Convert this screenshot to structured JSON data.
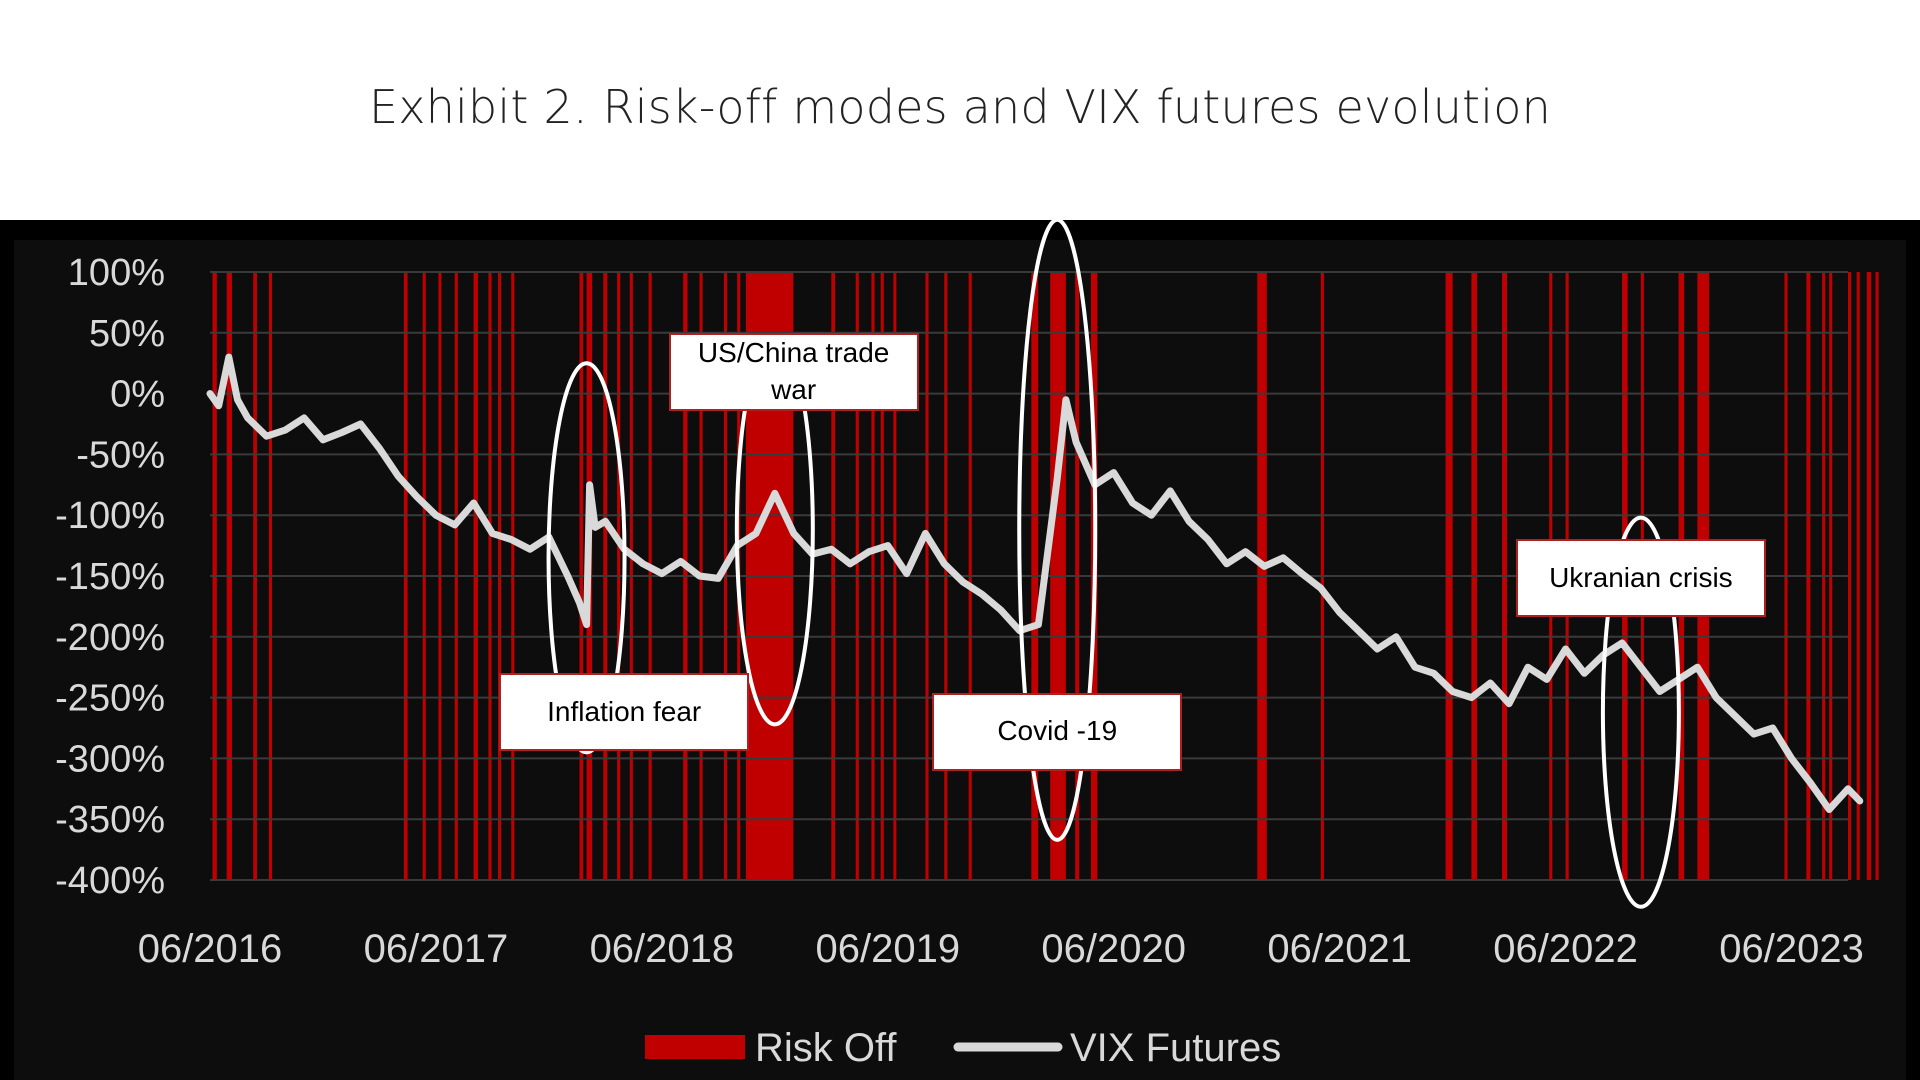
{
  "title": "Exhibit 2. Risk-off modes and VIX futures evolution",
  "colors": {
    "risk_off": "#c00000",
    "vix_line": "#d9d9d9",
    "plot_background": "#0d0d0d",
    "frame_background": "#000000",
    "grid": "#3a3a3a",
    "axis_text": "#d9d9d9",
    "ellipse": "#ffffff"
  },
  "chart_data": {
    "type": "line",
    "title": "",
    "xlabel": "",
    "ylabel": "",
    "ylim": [
      -400,
      100
    ],
    "y_unit": "%",
    "y_ticks": [
      "100%",
      "50%",
      "0%",
      "-50%",
      "-100%",
      "-150%",
      "-200%",
      "-250%",
      "-300%",
      "-350%",
      "-400%"
    ],
    "y_tick_values": [
      100,
      50,
      0,
      -50,
      -100,
      -150,
      -200,
      -250,
      -300,
      -350,
      -400
    ],
    "x_range": [
      "2016-06",
      "2023-09"
    ],
    "x_ticks": [
      "06/2016",
      "06/2017",
      "06/2018",
      "06/2019",
      "06/2020",
      "06/2021",
      "06/2022",
      "06/2023"
    ],
    "x_tick_dates": [
      "2016-06",
      "2017-06",
      "2018-06",
      "2019-06",
      "2020-06",
      "2021-06",
      "2022-06",
      "2023-06"
    ],
    "grid": true,
    "legend_position": "bottom",
    "series": [
      {
        "name": "VIX Futures",
        "points": [
          [
            "2016-06",
            0
          ],
          [
            "2016-06-15",
            -10
          ],
          [
            "2016-07",
            30
          ],
          [
            "2016-07-15",
            -5
          ],
          [
            "2016-08",
            -20
          ],
          [
            "2016-09",
            -35
          ],
          [
            "2016-10",
            -30
          ],
          [
            "2016-11",
            -20
          ],
          [
            "2016-12",
            -38
          ],
          [
            "2017-01",
            -32
          ],
          [
            "2017-02",
            -25
          ],
          [
            "2017-03",
            -45
          ],
          [
            "2017-04",
            -68
          ],
          [
            "2017-05",
            -85
          ],
          [
            "2017-06",
            -100
          ],
          [
            "2017-07",
            -108
          ],
          [
            "2017-08",
            -90
          ],
          [
            "2017-09",
            -115
          ],
          [
            "2017-10",
            -120
          ],
          [
            "2017-11",
            -128
          ],
          [
            "2017-12",
            -118
          ],
          [
            "2018-01",
            -150
          ],
          [
            "2018-01-20",
            -172
          ],
          [
            "2018-02",
            -190
          ],
          [
            "2018-02-06",
            -75
          ],
          [
            "2018-02-15",
            -110
          ],
          [
            "2018-03",
            -105
          ],
          [
            "2018-04",
            -128
          ],
          [
            "2018-05",
            -140
          ],
          [
            "2018-06",
            -148
          ],
          [
            "2018-07",
            -138
          ],
          [
            "2018-08",
            -150
          ],
          [
            "2018-09",
            -152
          ],
          [
            "2018-10",
            -125
          ],
          [
            "2018-11",
            -115
          ],
          [
            "2018-12",
            -82
          ],
          [
            "2019-01",
            -115
          ],
          [
            "2019-02",
            -132
          ],
          [
            "2019-03",
            -128
          ],
          [
            "2019-04",
            -140
          ],
          [
            "2019-05",
            -130
          ],
          [
            "2019-06",
            -125
          ],
          [
            "2019-07",
            -148
          ],
          [
            "2019-08",
            -115
          ],
          [
            "2019-09",
            -140
          ],
          [
            "2019-10",
            -155
          ],
          [
            "2019-11",
            -165
          ],
          [
            "2019-12",
            -178
          ],
          [
            "2020-01",
            -195
          ],
          [
            "2020-02",
            -190
          ],
          [
            "2020-03",
            -70
          ],
          [
            "2020-03-15",
            -5
          ],
          [
            "2020-04",
            -40
          ],
          [
            "2020-05",
            -75
          ],
          [
            "2020-06",
            -65
          ],
          [
            "2020-07",
            -90
          ],
          [
            "2020-08",
            -100
          ],
          [
            "2020-09",
            -80
          ],
          [
            "2020-10",
            -105
          ],
          [
            "2020-11",
            -120
          ],
          [
            "2020-12",
            -140
          ],
          [
            "2021-01",
            -130
          ],
          [
            "2021-02",
            -142
          ],
          [
            "2021-03",
            -135
          ],
          [
            "2021-04",
            -148
          ],
          [
            "2021-05",
            -160
          ],
          [
            "2021-06",
            -180
          ],
          [
            "2021-07",
            -195
          ],
          [
            "2021-08",
            -210
          ],
          [
            "2021-09",
            -200
          ],
          [
            "2021-10",
            -225
          ],
          [
            "2021-11",
            -230
          ],
          [
            "2021-12",
            -245
          ],
          [
            "2022-01",
            -250
          ],
          [
            "2022-02",
            -238
          ],
          [
            "2022-03",
            -255
          ],
          [
            "2022-04",
            -225
          ],
          [
            "2022-05",
            -235
          ],
          [
            "2022-06",
            -210
          ],
          [
            "2022-07",
            -230
          ],
          [
            "2022-08",
            -215
          ],
          [
            "2022-09",
            -205
          ],
          [
            "2022-10",
            -225
          ],
          [
            "2022-11",
            -245
          ],
          [
            "2022-12",
            -235
          ],
          [
            "2023-01",
            -225
          ],
          [
            "2023-02",
            -250
          ],
          [
            "2023-03",
            -265
          ],
          [
            "2023-04",
            -280
          ],
          [
            "2023-05",
            -275
          ],
          [
            "2023-06",
            -300
          ],
          [
            "2023-07",
            -320
          ],
          [
            "2023-08",
            -342
          ],
          [
            "2023-09",
            -325
          ],
          [
            "2023-09-20",
            -335
          ]
        ]
      },
      {
        "name": "Risk Off",
        "type": "periods",
        "periods": [
          [
            "2016-06-05",
            "2016-06-12"
          ],
          [
            "2016-06-28",
            "2016-07-06"
          ],
          [
            "2016-08-10",
            "2016-08-16"
          ],
          [
            "2016-09-05",
            "2016-09-10"
          ],
          [
            "2017-04-10",
            "2017-04-16"
          ],
          [
            "2017-05-10",
            "2017-05-15"
          ],
          [
            "2017-06-05",
            "2017-06-09"
          ],
          [
            "2017-07-01",
            "2017-07-06"
          ],
          [
            "2017-08-01",
            "2017-08-08"
          ],
          [
            "2017-08-25",
            "2017-08-30"
          ],
          [
            "2017-09-10",
            "2017-09-15"
          ],
          [
            "2017-10-01",
            "2017-10-06"
          ],
          [
            "2018-01-20",
            "2018-01-26"
          ],
          [
            "2018-02-01",
            "2018-02-10"
          ],
          [
            "2018-02-28",
            "2018-03-04"
          ],
          [
            "2018-03-20",
            "2018-03-25"
          ],
          [
            "2018-04-10",
            "2018-04-15"
          ],
          [
            "2018-05-10",
            "2018-05-15"
          ],
          [
            "2018-07-05",
            "2018-07-12"
          ],
          [
            "2018-08-01",
            "2018-08-06"
          ],
          [
            "2018-09-10",
            "2018-09-15"
          ],
          [
            "2018-10-01",
            "2018-10-06"
          ],
          [
            "2018-10-15",
            "2018-12-31"
          ],
          [
            "2019-03-01",
            "2019-03-07"
          ],
          [
            "2019-04-10",
            "2019-04-15"
          ],
          [
            "2019-05-05",
            "2019-05-10"
          ],
          [
            "2019-05-20",
            "2019-05-25"
          ],
          [
            "2019-06-10",
            "2019-06-14"
          ],
          [
            "2019-08-01",
            "2019-08-06"
          ],
          [
            "2019-09-01",
            "2019-09-06"
          ],
          [
            "2019-10-10",
            "2019-10-15"
          ],
          [
            "2020-01-20",
            "2020-01-31"
          ],
          [
            "2020-02-20",
            "2020-03-15"
          ],
          [
            "2020-03-30",
            "2020-04-06"
          ],
          [
            "2020-04-25",
            "2020-05-05"
          ],
          [
            "2021-01-20",
            "2021-02-05"
          ],
          [
            "2021-05-01",
            "2021-05-06"
          ],
          [
            "2021-11-20",
            "2021-12-01"
          ],
          [
            "2022-01-01",
            "2022-01-10"
          ],
          [
            "2022-02-20",
            "2022-02-28"
          ],
          [
            "2022-05-05",
            "2022-05-10"
          ],
          [
            "2022-06-01",
            "2022-06-06"
          ],
          [
            "2022-09-01",
            "2022-09-10"
          ],
          [
            "2022-10-01",
            "2022-10-05"
          ],
          [
            "2022-12-01",
            "2022-12-10"
          ],
          [
            "2023-01-01",
            "2023-01-20"
          ],
          [
            "2023-05-20",
            "2023-05-25"
          ],
          [
            "2023-06-25",
            "2023-07-01"
          ],
          [
            "2023-07-20",
            "2023-07-25"
          ],
          [
            "2023-08-01",
            "2023-08-06"
          ],
          [
            "2023-09-01",
            "2023-09-06"
          ],
          [
            "2023-09-15",
            "2023-09-20"
          ],
          [
            "2023-10-01",
            "2023-10-08"
          ],
          [
            "2023-10-15",
            "2023-10-20"
          ]
        ]
      }
    ],
    "legend": [
      "Risk Off",
      "VIX Futures"
    ],
    "annotations": [
      {
        "id": "inflation",
        "text": "Inflation fear",
        "date": "2018-02-01",
        "y_center": -135,
        "y_span": 160,
        "box_date": "2018-04-01",
        "box_y": -262
      },
      {
        "id": "tradewar",
        "text": "US/China trade war",
        "date": "2018-12-01",
        "y_center": -112,
        "y_span": 160,
        "box_date": "2019-01-01",
        "box_y": 18
      },
      {
        "id": "covid",
        "text": "Covid -19",
        "date": "2020-03-01",
        "y_center": -112,
        "y_span": 255,
        "box_date": "2020-03-01",
        "box_y": -278
      },
      {
        "id": "ukraine",
        "text": "Ukranian crisis",
        "date": "2022-10-01",
        "y_center": -262,
        "y_span": 160,
        "box_date": "2022-10-01",
        "box_y": -152
      }
    ]
  }
}
